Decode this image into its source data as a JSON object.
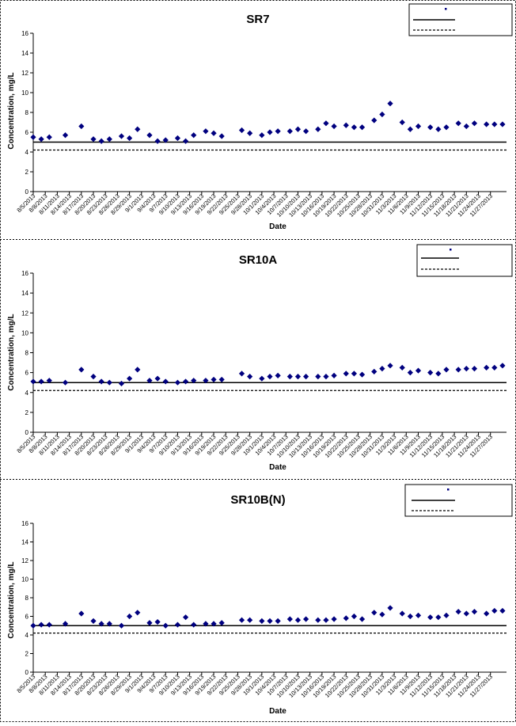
{
  "chart_data": [
    {
      "type": "scatter",
      "title": "SR7",
      "xlabel": "Date",
      "ylabel": "Concentration, mg/L",
      "ylim": [
        0,
        16
      ],
      "yticks": [
        0,
        2,
        4,
        6,
        8,
        10,
        12,
        14,
        16
      ],
      "grid": false,
      "legend_position": "top-right",
      "xticklabels": [
        "8/5/2013",
        "8/8/2013",
        "8/11/2013",
        "8/14/2013",
        "8/17/2013",
        "8/20/2013",
        "8/23/2013",
        "8/26/2013",
        "8/29/2013",
        "9/1/2013",
        "9/4/2013",
        "9/7/2013",
        "9/10/2013",
        "9/13/2013",
        "9/16/2013",
        "9/19/2013",
        "9/22/2013",
        "9/25/2013",
        "9/28/2013",
        "10/1/2013",
        "10/4/2013",
        "10/7/2013",
        "10/10/2013",
        "10/13/2013",
        "10/16/2013",
        "10/19/2013",
        "10/22/2013",
        "10/25/2013",
        "10/28/2013",
        "10/31/2013",
        "11/3/2013",
        "11/6/2013",
        "11/9/2013",
        "11/12/2013",
        "11/15/2013",
        "11/18/2013",
        "11/21/2013",
        "11/24/2013",
        "11/27/2013"
      ],
      "reference_lines": [
        {
          "style": "solid",
          "value": 5
        },
        {
          "style": "dashed",
          "value": 4.2
        }
      ],
      "x": [
        "8/5/2013",
        "8/7/2013",
        "8/9/2013",
        "8/13/2013",
        "8/17/2013",
        "8/20/2013",
        "8/22/2013",
        "8/24/2013",
        "8/27/2013",
        "8/29/2013",
        "8/31/2013",
        "9/3/2013",
        "9/5/2013",
        "9/7/2013",
        "9/10/2013",
        "9/12/2013",
        "9/14/2013",
        "9/17/2013",
        "9/19/2013",
        "9/21/2013",
        "9/26/2013",
        "9/28/2013",
        "10/1/2013",
        "10/3/2013",
        "10/5/2013",
        "10/8/2013",
        "10/10/2013",
        "10/12/2013",
        "10/15/2013",
        "10/17/2013",
        "10/19/2013",
        "10/22/2013",
        "10/24/2013",
        "10/26/2013",
        "10/29/2013",
        "10/31/2013",
        "11/2/2013",
        "11/5/2013",
        "11/7/2013",
        "11/9/2013",
        "11/12/2013",
        "11/14/2013",
        "11/16/2013",
        "11/19/2013",
        "11/21/2013",
        "11/23/2013",
        "11/26/2013",
        "11/28/2013",
        "11/30/2013"
      ],
      "y": [
        5.5,
        5.3,
        5.5,
        5.7,
        6.6,
        5.3,
        5.1,
        5.3,
        5.6,
        5.4,
        6.3,
        5.7,
        5.1,
        5.2,
        5.4,
        5.1,
        5.7,
        6.1,
        5.9,
        5.6,
        6.2,
        5.9,
        5.7,
        6.0,
        6.1,
        6.1,
        6.3,
        6.1,
        6.3,
        6.9,
        6.6,
        6.7,
        6.5,
        6.5,
        7.2,
        7.8,
        8.9,
        7.0,
        6.3,
        6.6,
        6.5,
        6.3,
        6.5,
        6.9,
        6.6,
        6.9,
        6.8,
        6.8,
        6.8
      ]
    },
    {
      "type": "scatter",
      "title": "SR10A",
      "xlabel": "Date",
      "ylabel": "Concentration, mg/L",
      "ylim": [
        0,
        16
      ],
      "yticks": [
        0,
        2,
        4,
        6,
        8,
        10,
        12,
        14,
        16
      ],
      "grid": false,
      "legend_position": "top-right",
      "xticklabels": [
        "8/5/2013",
        "8/8/2013",
        "8/11/2013",
        "8/14/2013",
        "8/17/2013",
        "8/20/2013",
        "8/23/2013",
        "8/26/2013",
        "8/29/2013",
        "9/1/2013",
        "9/4/2013",
        "9/7/2013",
        "9/10/2013",
        "9/13/2013",
        "9/16/2013",
        "9/19/2013",
        "9/22/2013",
        "9/25/2013",
        "9/28/2013",
        "10/1/2013",
        "10/4/2013",
        "10/7/2013",
        "10/10/2013",
        "10/13/2013",
        "10/16/2013",
        "10/19/2013",
        "10/22/2013",
        "10/25/2013",
        "10/28/2013",
        "10/31/2013",
        "11/3/2013",
        "11/6/2013",
        "11/9/2013",
        "11/12/2013",
        "11/15/2013",
        "11/18/2013",
        "11/21/2013",
        "11/24/2013",
        "11/27/2013"
      ],
      "reference_lines": [
        {
          "style": "solid",
          "value": 5
        },
        {
          "style": "dashed",
          "value": 4.2
        }
      ],
      "x": [
        "8/5/2013",
        "8/7/2013",
        "8/9/2013",
        "8/13/2013",
        "8/17/2013",
        "8/20/2013",
        "8/22/2013",
        "8/24/2013",
        "8/27/2013",
        "8/29/2013",
        "8/31/2013",
        "9/3/2013",
        "9/5/2013",
        "9/7/2013",
        "9/10/2013",
        "9/12/2013",
        "9/14/2013",
        "9/17/2013",
        "9/19/2013",
        "9/21/2013",
        "9/26/2013",
        "9/28/2013",
        "10/1/2013",
        "10/3/2013",
        "10/5/2013",
        "10/8/2013",
        "10/10/2013",
        "10/12/2013",
        "10/15/2013",
        "10/17/2013",
        "10/19/2013",
        "10/22/2013",
        "10/24/2013",
        "10/26/2013",
        "10/29/2013",
        "10/31/2013",
        "11/2/2013",
        "11/5/2013",
        "11/7/2013",
        "11/9/2013",
        "11/12/2013",
        "11/14/2013",
        "11/16/2013",
        "11/19/2013",
        "11/21/2013",
        "11/23/2013",
        "11/26/2013",
        "11/28/2013",
        "11/30/2013"
      ],
      "y": [
        5.1,
        5.1,
        5.2,
        5.0,
        6.3,
        5.6,
        5.1,
        5.0,
        4.9,
        5.4,
        6.3,
        5.2,
        5.4,
        5.1,
        5.0,
        5.1,
        5.2,
        5.2,
        5.3,
        5.3,
        5.9,
        5.6,
        5.4,
        5.6,
        5.7,
        5.6,
        5.6,
        5.6,
        5.6,
        5.6,
        5.7,
        5.9,
        5.9,
        5.8,
        6.1,
        6.4,
        6.7,
        6.5,
        6.0,
        6.2,
        6.0,
        5.9,
        6.3,
        6.3,
        6.4,
        6.4,
        6.5,
        6.5,
        6.7
      ]
    },
    {
      "type": "scatter",
      "title": "SR10B(N)",
      "xlabel": "Date",
      "ylabel": "Concentration, mg/L",
      "ylim": [
        0,
        16
      ],
      "yticks": [
        0,
        2,
        4,
        6,
        8,
        10,
        12,
        14,
        16
      ],
      "grid": false,
      "legend_position": "top-right",
      "xticklabels": [
        "8/5/2013",
        "8/8/2013",
        "8/11/2013",
        "8/14/2013",
        "8/17/2013",
        "8/20/2013",
        "8/23/2013",
        "8/26/2013",
        "8/29/2013",
        "9/1/2013",
        "9/4/2013",
        "9/7/2013",
        "9/10/2013",
        "9/13/2013",
        "9/16/2013",
        "9/19/2013",
        "9/22/2013",
        "9/25/2013",
        "9/28/2013",
        "10/1/2013",
        "10/4/2013",
        "10/7/2013",
        "10/10/2013",
        "10/13/2013",
        "10/16/2013",
        "10/19/2013",
        "10/22/2013",
        "10/25/2013",
        "10/28/2013",
        "10/31/2013",
        "11/3/2013",
        "11/6/2013",
        "11/9/2013",
        "11/12/2013",
        "11/15/2013",
        "11/18/2013",
        "11/21/2013",
        "11/24/2013",
        "11/27/2013"
      ],
      "reference_lines": [
        {
          "style": "solid",
          "value": 5
        },
        {
          "style": "dashed",
          "value": 4.2
        }
      ],
      "x": [
        "8/5/2013",
        "8/7/2013",
        "8/9/2013",
        "8/13/2013",
        "8/17/2013",
        "8/20/2013",
        "8/22/2013",
        "8/24/2013",
        "8/27/2013",
        "8/29/2013",
        "8/31/2013",
        "9/3/2013",
        "9/5/2013",
        "9/7/2013",
        "9/10/2013",
        "9/12/2013",
        "9/14/2013",
        "9/17/2013",
        "9/19/2013",
        "9/21/2013",
        "9/26/2013",
        "9/28/2013",
        "10/1/2013",
        "10/3/2013",
        "10/5/2013",
        "10/8/2013",
        "10/10/2013",
        "10/12/2013",
        "10/15/2013",
        "10/17/2013",
        "10/19/2013",
        "10/22/2013",
        "10/24/2013",
        "10/26/2013",
        "10/29/2013",
        "10/31/2013",
        "11/2/2013",
        "11/5/2013",
        "11/7/2013",
        "11/9/2013",
        "11/12/2013",
        "11/14/2013",
        "11/16/2013",
        "11/19/2013",
        "11/21/2013",
        "11/23/2013",
        "11/26/2013",
        "11/28/2013",
        "11/30/2013"
      ],
      "y": [
        5.0,
        5.1,
        5.1,
        5.2,
        6.3,
        5.5,
        5.2,
        5.2,
        5.0,
        6.0,
        6.4,
        5.3,
        5.4,
        5.0,
        5.1,
        5.9,
        5.1,
        5.2,
        5.2,
        5.3,
        5.6,
        5.6,
        5.5,
        5.5,
        5.5,
        5.7,
        5.6,
        5.7,
        5.6,
        5.6,
        5.7,
        5.8,
        6.0,
        5.7,
        6.4,
        6.2,
        6.9,
        6.3,
        6.0,
        6.1,
        5.9,
        5.9,
        6.1,
        6.5,
        6.3,
        6.5,
        6.3,
        6.6,
        6.6
      ]
    }
  ],
  "colors": {
    "marker": "#00007f",
    "axis": "#000000",
    "title": "#000000"
  }
}
